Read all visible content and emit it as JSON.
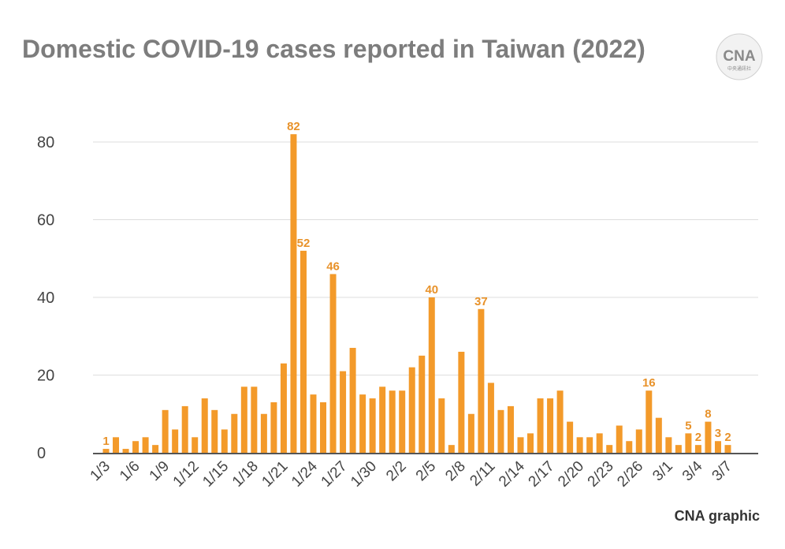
{
  "title": "Domestic COVID-19 cases reported in Taiwan (2022)",
  "credit": "CNA graphic",
  "logo": {
    "text": "CNA",
    "subtext": "中央通訊社",
    "icon": "cna-logo"
  },
  "colors": {
    "bar": "#F39A2A",
    "label": "#E8922A",
    "grid": "#dddddd",
    "axis": "#555555",
    "tick": "#444444",
    "title": "#7d7d7d"
  },
  "chart_data": {
    "type": "bar",
    "title": "Domestic COVID-19 cases reported in Taiwan (2022)",
    "xlabel": "",
    "ylabel": "",
    "ylim": [
      0,
      80
    ],
    "yticks": [
      0,
      20,
      40,
      60,
      80
    ],
    "grid": true,
    "legend": "none",
    "categories": [
      "1/3",
      "1/4",
      "1/5",
      "1/6",
      "1/7",
      "1/8",
      "1/9",
      "1/10",
      "1/11",
      "1/12",
      "1/13",
      "1/14",
      "1/15",
      "1/16",
      "1/17",
      "1/18",
      "1/19",
      "1/20",
      "1/21",
      "1/22",
      "1/23",
      "1/24",
      "1/25",
      "1/26",
      "1/27",
      "1/28",
      "1/29",
      "1/30",
      "1/31",
      "2/1",
      "2/2",
      "2/3",
      "2/4",
      "2/5",
      "2/6",
      "2/7",
      "2/8",
      "2/9",
      "2/10",
      "2/11",
      "2/12",
      "2/13",
      "2/14",
      "2/15",
      "2/16",
      "2/17",
      "2/18",
      "2/19",
      "2/20",
      "2/21",
      "2/22",
      "2/23",
      "2/24",
      "2/25",
      "2/26",
      "2/27",
      "2/28",
      "3/1",
      "3/2",
      "3/3",
      "3/4",
      "3/5",
      "3/6",
      "3/7"
    ],
    "values": [
      1,
      4,
      1,
      3,
      4,
      2,
      11,
      6,
      12,
      4,
      14,
      11,
      6,
      10,
      17,
      17,
      10,
      13,
      23,
      82,
      52,
      15,
      13,
      46,
      21,
      27,
      15,
      14,
      17,
      16,
      16,
      22,
      25,
      40,
      14,
      2,
      26,
      10,
      37,
      18,
      11,
      12,
      4,
      5,
      14,
      14,
      16,
      8,
      4,
      4,
      5,
      2,
      7,
      3,
      6,
      16,
      9,
      4,
      2,
      5,
      2,
      8,
      3,
      2
    ],
    "xtick_labels": [
      "1/3",
      "1/6",
      "1/9",
      "1/12",
      "1/15",
      "1/18",
      "1/21",
      "1/24",
      "1/27",
      "1/30",
      "2/2",
      "2/5",
      "2/8",
      "2/11",
      "2/14",
      "2/17",
      "2/20",
      "2/23",
      "2/26",
      "3/1",
      "3/4",
      "3/7"
    ],
    "data_labels": [
      {
        "category": "1/3",
        "value": 1
      },
      {
        "category": "1/22",
        "value": 82
      },
      {
        "category": "1/23",
        "value": 52
      },
      {
        "category": "1/26",
        "value": 46
      },
      {
        "category": "2/5",
        "value": 40
      },
      {
        "category": "2/10",
        "value": 37
      },
      {
        "category": "2/27",
        "value": 16
      },
      {
        "category": "3/3",
        "value": 5
      },
      {
        "category": "3/4",
        "value": 2
      },
      {
        "category": "3/5",
        "value": 8
      },
      {
        "category": "3/6",
        "value": 3
      },
      {
        "category": "3/7",
        "value": 2
      }
    ]
  }
}
